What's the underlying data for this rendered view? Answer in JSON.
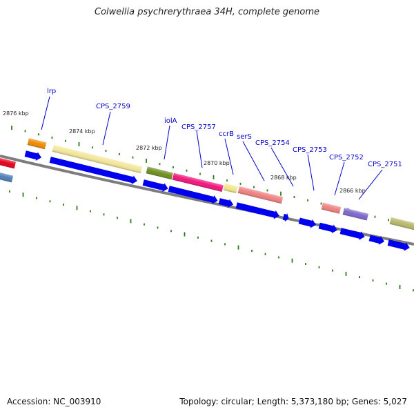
{
  "title": "Colwellia psychrerythraea 34H, complete genome",
  "footer": {
    "accession": "Accession: NC_003910",
    "summary": "Topology: circular; Length: 5,373,180 bp; Genes: 5,027"
  },
  "colors": {
    "backbone": "#808080",
    "tick": "#2a7a1a",
    "gene_arrow": "#0000ee",
    "label": "#0000cc"
  },
  "position_labels": [
    "2876 kbp",
    "2874 kbp",
    "2872 kbp",
    "2870 kbp",
    "2868 kbp",
    "2866 kbp"
  ],
  "genes": [
    {
      "name": "lrp"
    },
    {
      "name": "CPS_2759"
    },
    {
      "name": "iolA"
    },
    {
      "name": "CPS_2757"
    },
    {
      "name": "ccrB"
    },
    {
      "name": "serS"
    },
    {
      "name": "CPS_2754"
    },
    {
      "name": "CPS_2753"
    },
    {
      "name": "CPS_2752"
    },
    {
      "name": "CPS_2751"
    }
  ]
}
